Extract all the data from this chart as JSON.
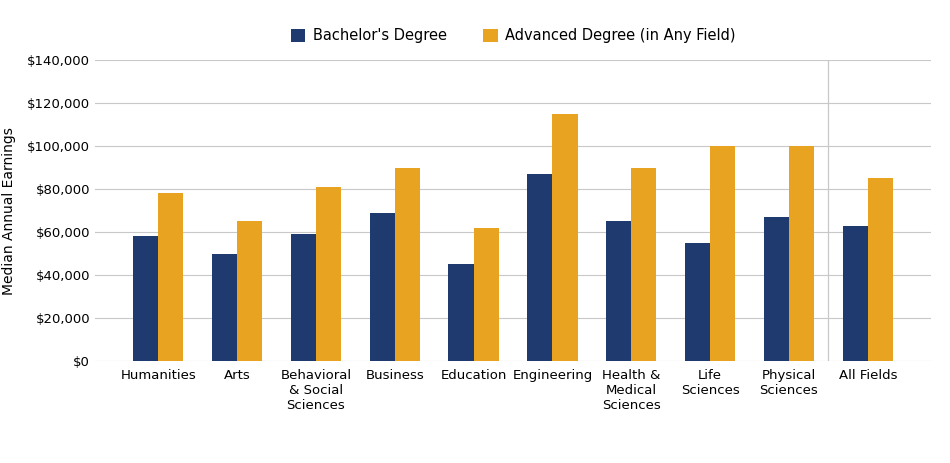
{
  "categories": [
    "Humanities",
    "Arts",
    "Behavioral\n& Social\nSciences",
    "Business",
    "Education",
    "Engineering",
    "Health &\nMedical\nSciences",
    "Life\nSciences",
    "Physical\nSciences",
    "All Fields"
  ],
  "bachelors": [
    58000,
    50000,
    59000,
    69000,
    45000,
    87000,
    65000,
    55000,
    67000,
    63000
  ],
  "advanced": [
    78000,
    65000,
    81000,
    90000,
    62000,
    115000,
    90000,
    100000,
    100000,
    85000
  ],
  "bar_color_bachelors": "#1f3a6e",
  "bar_color_advanced": "#e8a320",
  "legend_labels": [
    "Bachelor's Degree",
    "Advanced Degree (in Any Field)"
  ],
  "ylabel": "Median Annual Earnings",
  "ylim": [
    0,
    140000
  ],
  "yticks": [
    0,
    20000,
    40000,
    60000,
    80000,
    100000,
    120000,
    140000
  ],
  "background_color": "#ffffff",
  "grid_color": "#c8c8c8",
  "bar_width": 0.32,
  "tick_fontsize": 9.5,
  "legend_fontsize": 10.5,
  "ylabel_fontsize": 10
}
